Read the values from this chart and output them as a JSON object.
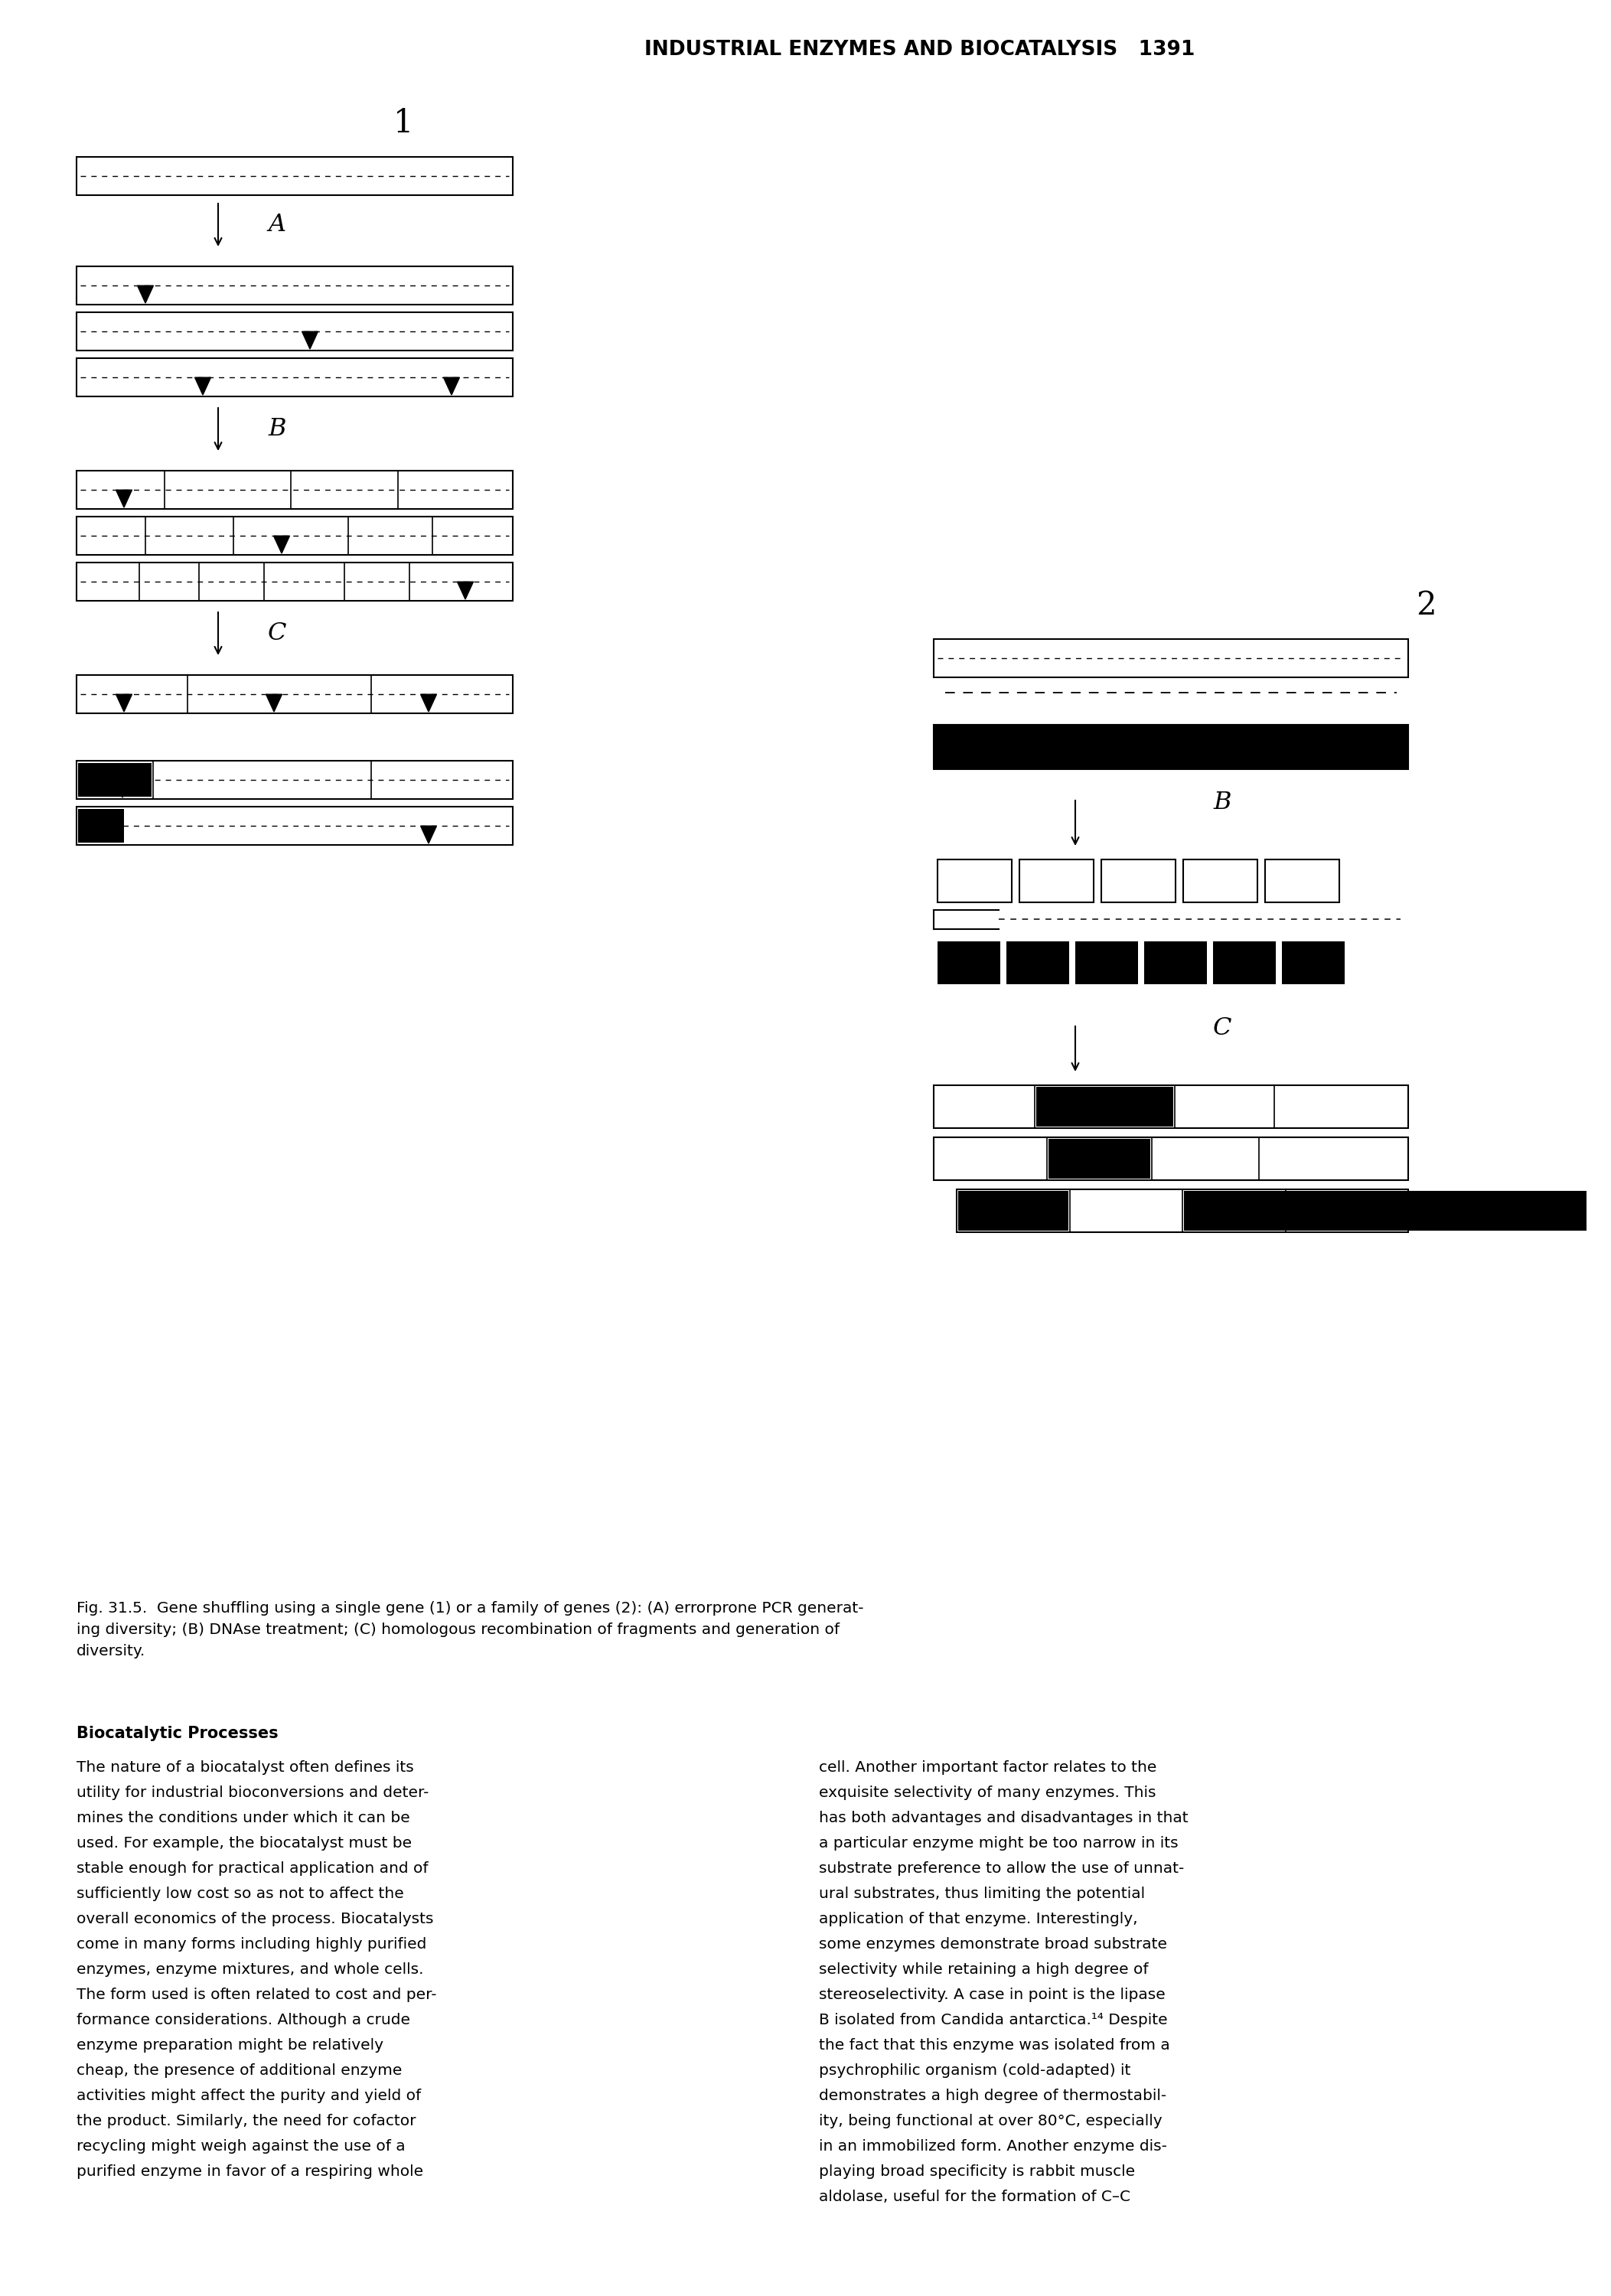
{
  "header_text": "INDUSTRIAL ENZYMES AND BIOCATALYSIS   1391",
  "label_1": "1",
  "label_2": "2",
  "label_A": "A",
  "label_B": "B",
  "label_C": "C",
  "caption_bold": "Fig. 31.5.",
  "caption_normal": "  Gene shuffling using a single gene (1) or a family of genes (2): (A) errorprone PCR generating diversity; (B) DNAse treatment; (C) homologous recombination of fragments and generation of diversity.",
  "body_left_title": "Biocatalytic Processes",
  "body_left_lines": [
    "The nature of a biocatalyst often defines its",
    "utility for industrial bioconversions and deter-",
    "mines the conditions under which it can be",
    "used. For example, the biocatalyst must be",
    "stable enough for practical application and of",
    "sufficiently low cost so as not to affect the",
    "overall economics of the process. Biocatalysts",
    "come in many forms including highly purified",
    "enzymes, enzyme mixtures, and whole cells.",
    "The form used is often related to cost and per-",
    "formance considerations. Although a crude",
    "enzyme preparation might be relatively",
    "cheap, the presence of additional enzyme",
    "activities might affect the purity and yield of",
    "the product. Similarly, the need for cofactor",
    "recycling might weigh against the use of a",
    "purified enzyme in favor of a respiring whole"
  ],
  "body_right_lines": [
    "cell. Another important factor relates to the",
    "exquisite selectivity of many enzymes. This",
    "has both advantages and disadvantages in that",
    "a particular enzyme might be too narrow in its",
    "substrate preference to allow the use of unnat-",
    "ural substrates, thus limiting the potential",
    "application of that enzyme. Interestingly,",
    "some enzymes demonstrate broad substrate",
    "selectivity while retaining a high degree of",
    "stereoselectivity. A case in point is the lipase",
    "B isolated from Candida antarctica.¹⁴ Despite",
    "the fact that this enzyme was isolated from a",
    "psychrophilic organism (cold-adapted) it",
    "demonstrates a high degree of thermostabil-",
    "ity, being functional at over 80°C, especially",
    "in an immobilized form. Another enzyme dis-",
    "playing broad specificity is rabbit muscle",
    "aldolase, useful for the formation of C–C"
  ]
}
